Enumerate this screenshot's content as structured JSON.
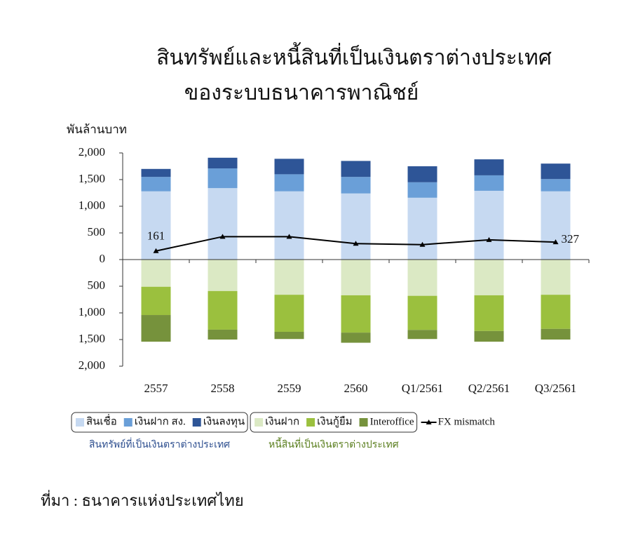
{
  "chart_data": {
    "type": "stacked-bar-line",
    "title": [
      "สินทรัพย์และหนี้สินที่เป็นเงินตราต่างประเทศ",
      "ของระบบธนาคารพาณิชย์"
    ],
    "y_label": "พันล้านบาท",
    "categories": [
      "2557",
      "2558",
      "2559",
      "2560",
      "Q1/2561",
      "Q2/2561",
      "Q3/2561"
    ],
    "series": [
      {
        "name": "สินเชื่อ",
        "color": "#c6d9f1",
        "kind": "bar",
        "values": [
          1280,
          1340,
          1280,
          1240,
          1160,
          1290,
          1280
        ]
      },
      {
        "name": "เงินฝาก สง.",
        "color": "#6a9fd8",
        "kind": "bar",
        "values": [
          270,
          370,
          320,
          310,
          290,
          290,
          230
        ]
      },
      {
        "name": "เงินลงทุน",
        "color": "#2e5597",
        "kind": "bar",
        "values": [
          150,
          200,
          290,
          300,
          300,
          300,
          290
        ]
      },
      {
        "name": "เงินฝาก",
        "color": "#dbe9c4",
        "kind": "bar",
        "values": [
          -510,
          -590,
          -660,
          -670,
          -680,
          -670,
          -660
        ]
      },
      {
        "name": "เงินกู้ยืม",
        "color": "#9bc03e",
        "kind": "bar",
        "values": [
          -530,
          -725,
          -695,
          -700,
          -640,
          -670,
          -640
        ]
      },
      {
        "name": "Interoffice",
        "color": "#76923c",
        "kind": "bar",
        "values": [
          -500,
          -185,
          -135,
          -190,
          -170,
          -200,
          -200
        ]
      },
      {
        "name": "FX mismatch",
        "color": "#000000",
        "kind": "line",
        "values": [
          161,
          430,
          430,
          300,
          280,
          370,
          327
        ],
        "value_labels": [
          "161",
          null,
          null,
          null,
          null,
          null,
          "327"
        ]
      }
    ],
    "legend_groups": [
      {
        "label": "สินทรัพย์ที่เป็นเงินตราต่างประเทศ",
        "series": [
          0,
          1,
          2
        ]
      },
      {
        "label": "หนี้สินที่เป็นเงินตราต่างประเทศ",
        "series": [
          3,
          4,
          5
        ]
      }
    ],
    "ylim": [
      -2000,
      2000
    ],
    "yticks": [
      {
        "value": 2000,
        "label": "2,000"
      },
      {
        "value": 1500,
        "label": "1,500"
      },
      {
        "value": 1000,
        "label": "1,000"
      },
      500,
      0,
      {
        "value": -500,
        "label": "500"
      },
      {
        "value": -1000,
        "label": "1,000"
      },
      {
        "value": -1500,
        "label": "1,500"
      },
      {
        "value": -2000,
        "label": "2,000"
      }
    ],
    "source": "ที่มา : ธนาคารแห่งประเทศไทย"
  }
}
